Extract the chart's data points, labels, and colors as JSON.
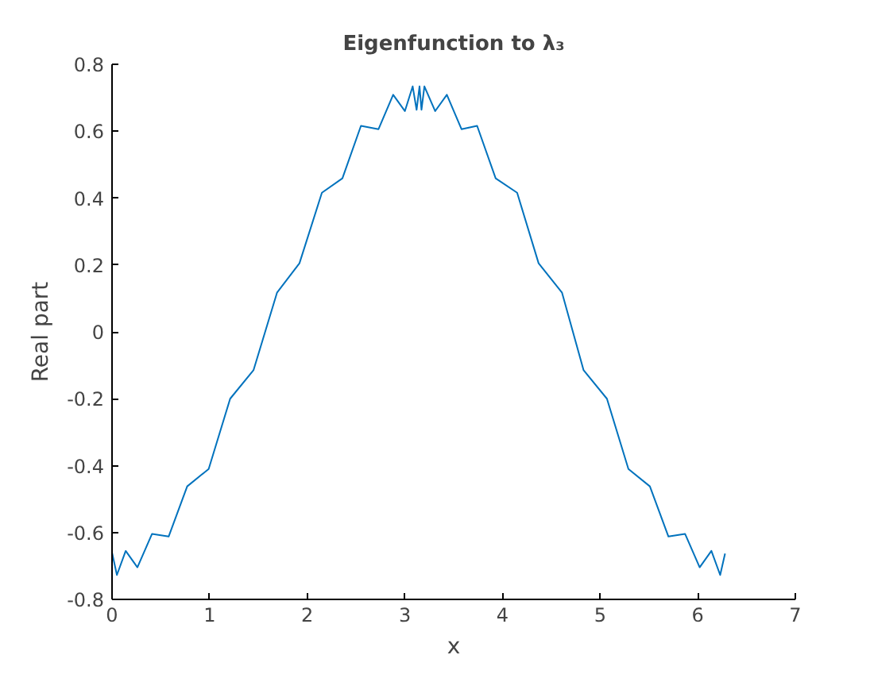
{
  "chart_data": {
    "type": "line",
    "title": "Eigenfunction to λ₃",
    "xlabel": "x",
    "ylabel": "Real part",
    "x": [
      0,
      0.05,
      0.14,
      0.26,
      0.41,
      0.58,
      0.77,
      0.99,
      1.21,
      1.45,
      1.69,
      1.92,
      2.15,
      2.36,
      2.55,
      2.73,
      2.88,
      3.0,
      3.08,
      3.12,
      3.15,
      3.17,
      3.2,
      3.31,
      3.43,
      3.58,
      3.74,
      3.93,
      4.15,
      4.37,
      4.61,
      4.83,
      5.07,
      5.29,
      5.51,
      5.7,
      5.87,
      6.02,
      6.14,
      6.23,
      6.28
    ],
    "series": [
      {
        "color": "#0072bd",
        "values": [
          -0.66,
          -0.727,
          -0.655,
          -0.704,
          -0.604,
          -0.612,
          -0.462,
          -0.41,
          -0.2,
          -0.114,
          0.117,
          0.205,
          0.416,
          0.459,
          0.616,
          0.606,
          0.709,
          0.66,
          0.734,
          0.664,
          0.734,
          0.664,
          0.734,
          0.66,
          0.709,
          0.606,
          0.616,
          0.459,
          0.416,
          0.205,
          0.117,
          -0.114,
          -0.2,
          -0.41,
          -0.462,
          -0.612,
          -0.604,
          -0.704,
          -0.655,
          -0.727,
          -0.663
        ]
      }
    ],
    "xlim": [
      0,
      7
    ],
    "xticks": [
      0,
      1,
      2,
      3,
      4,
      5,
      6,
      7
    ],
    "ylim": [
      -0.8,
      0.8
    ],
    "yticks": [
      {
        "value": -0.8,
        "label": "-0.8"
      },
      {
        "value": -0.6,
        "label": "-0.6"
      },
      {
        "value": -0.4,
        "label": "-0.4"
      },
      {
        "value": -0.2,
        "label": "-0.2"
      },
      0,
      0.2,
      0.4,
      0.6,
      0.8
    ],
    "marker": "none",
    "line_style": "solid"
  }
}
